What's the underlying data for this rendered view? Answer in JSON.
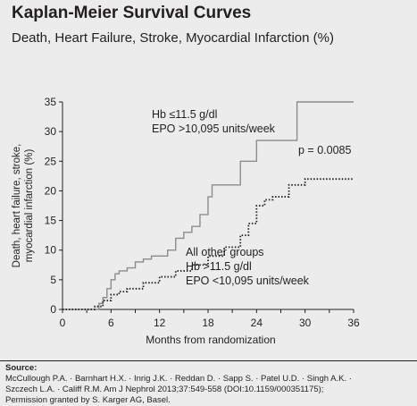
{
  "header": {
    "title": "Kaplan-Meier Survival Curves",
    "subtitle": "Death, Heart Failure, Stroke, Myocardial Infarction (%)"
  },
  "chart_data": {
    "type": "line",
    "xlabel": "Months from randomization",
    "ylabel_lines": [
      "Death, heart failure, stroke,",
      "myocardial infarction (%)"
    ],
    "xlim": [
      0,
      36
    ],
    "ylim": [
      0,
      35
    ],
    "x_ticks": [
      "0",
      "6",
      "12",
      "18",
      "24",
      "30",
      "36"
    ],
    "y_ticks": [
      "0",
      "5",
      "10",
      "15",
      "20",
      "25",
      "30",
      "35"
    ],
    "grid": false,
    "series": [
      {
        "label_lines": [
          "Hb ≤11.5 g/dl",
          "EPO >10,095 units/week"
        ],
        "style": "solid",
        "color": "#8c8c8c",
        "x": [
          0,
          4.0,
          4.5,
          5.0,
          5.5,
          6.0,
          6.5,
          7.0,
          8.0,
          9.0,
          10.0,
          11.0,
          12.0,
          13.0,
          14.0,
          15.0,
          16.0,
          17.0,
          18.0,
          18.5,
          19.0,
          20.0,
          21.0,
          22.0,
          23.0,
          24.0,
          28.0,
          29.0,
          36.0
        ],
        "y": [
          0,
          0,
          1.0,
          2.0,
          3.5,
          5.0,
          6.0,
          6.5,
          7.0,
          8.0,
          8.5,
          9.0,
          9.0,
          10.0,
          12.0,
          13.0,
          14.0,
          16.0,
          19.0,
          21.0,
          21.0,
          21.0,
          21.0,
          25.0,
          25.0,
          28.5,
          28.5,
          35.0,
          35.0
        ]
      },
      {
        "label_lines": [
          "All other groups",
          "Hb >11.5 g/dl",
          "EPO <10,095 units/week"
        ],
        "style": "dotted",
        "color": "#231f20",
        "x": [
          0,
          3.5,
          4.0,
          5.0,
          6.0,
          7.0,
          8.0,
          10.0,
          12.0,
          14.0,
          16.0,
          18.0,
          20.0,
          22.0,
          23.0,
          24.0,
          25.0,
          26.0,
          28.0,
          30.0,
          32.0,
          34.0,
          36.0
        ],
        "y": [
          0,
          0,
          0.5,
          1.5,
          2.5,
          3.0,
          3.5,
          4.5,
          5.5,
          6.5,
          7.5,
          9.0,
          10.5,
          12.5,
          14.5,
          17.5,
          18.5,
          19.0,
          21.0,
          22.0,
          22.0,
          22.0,
          22.0
        ]
      }
    ],
    "annotations": [
      {
        "text": "p = 0.0085"
      }
    ]
  },
  "source": {
    "label": "Source:",
    "lines": [
      "McCullough P.A. · Barnhart H.X. · Inrig J.K. · Reddan D. · Sapp S. · Patel U.D. · Singh A.K. ·",
      "Szczech L.A. · Califf R.M. Am J Nephrol 2013;37:549-558 (DOI:10.1159/000351175);",
      "Permission granted by S. Karger AG, Basel."
    ]
  }
}
